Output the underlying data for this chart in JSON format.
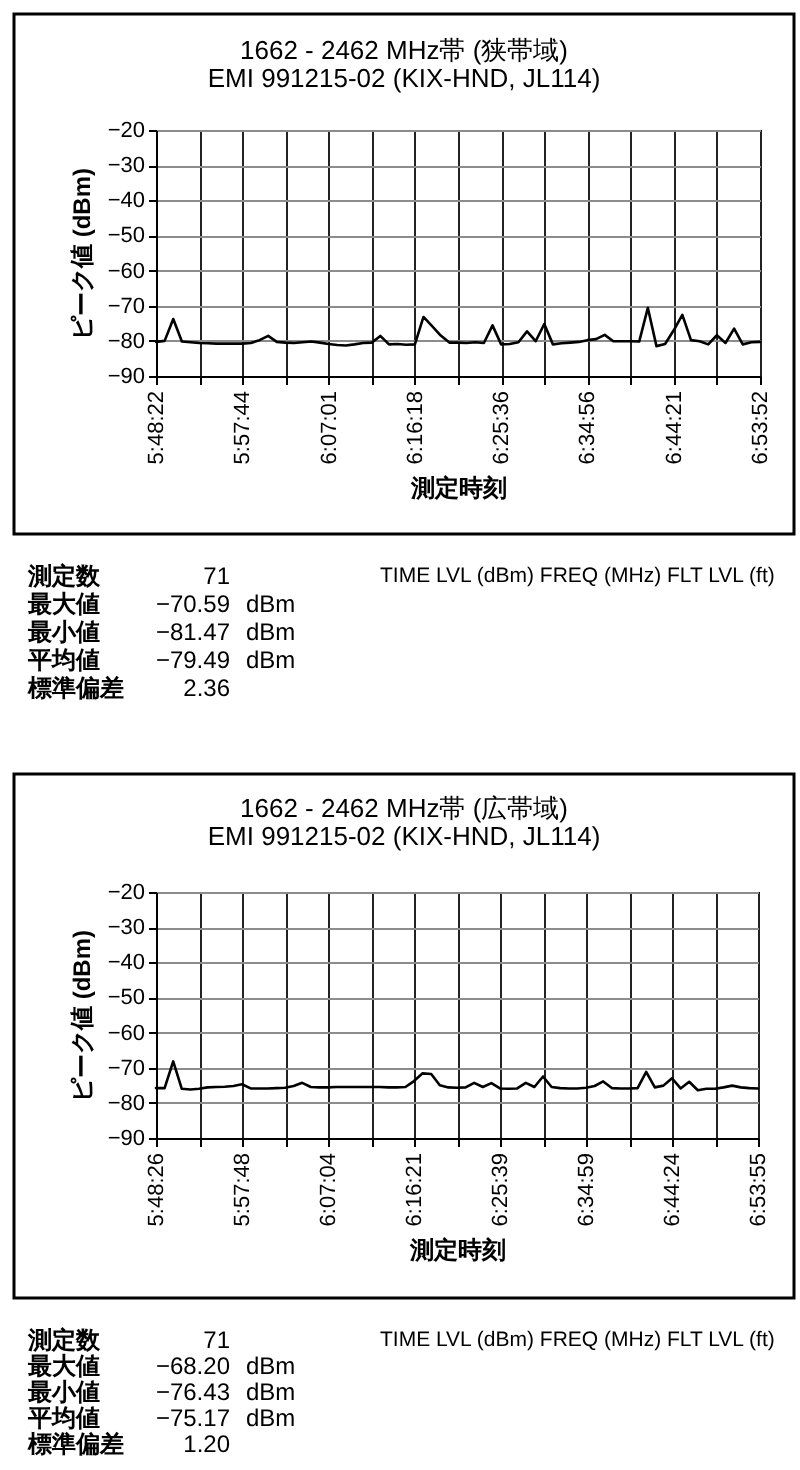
{
  "chart_data": [
    {
      "type": "line",
      "title": "1662 - 2462 MHz帯 (狭帯域)",
      "subtitle": "EMI 991215-02 (KIX-HND, JL114)",
      "xlabel": "測定時刻",
      "ylabel": "ピーク値 (dBm)",
      "categories": [
        "5:48:22",
        null,
        null,
        null,
        null,
        null,
        null,
        null,
        null,
        null,
        "5:57:44",
        null,
        null,
        null,
        null,
        null,
        null,
        null,
        null,
        null,
        "6:07:01",
        null,
        null,
        null,
        null,
        null,
        null,
        null,
        null,
        null,
        "6:16:18",
        null,
        null,
        null,
        null,
        null,
        null,
        null,
        null,
        null,
        "6:25:36",
        null,
        null,
        null,
        null,
        null,
        null,
        null,
        null,
        null,
        "6:34:56",
        null,
        null,
        null,
        null,
        null,
        null,
        null,
        null,
        null,
        "6:44:21",
        null,
        null,
        null,
        null,
        null,
        null,
        null,
        null,
        null,
        "6:53:52"
      ],
      "series": [
        {
          "color": "#000000",
          "values": [
            -80.3,
            -80.0,
            -73.8,
            -80.2,
            -80.4,
            -80.6,
            -80.7,
            -80.8,
            -80.8,
            -80.8,
            -80.8,
            -80.6,
            -79.8,
            -78.6,
            -80.3,
            -80.5,
            -80.6,
            -80.4,
            -80.2,
            -80.5,
            -80.9,
            -81.2,
            -81.3,
            -81.0,
            -80.6,
            -80.5,
            -78.6,
            -81.0,
            -80.9,
            -81.1,
            -81.0,
            -73.2,
            -75.8,
            -78.5,
            -80.5,
            -80.5,
            -80.6,
            -80.4,
            -80.6,
            -75.6,
            -81.0,
            -80.9,
            -80.4,
            -77.3,
            -80.1,
            -75.2,
            -81.0,
            -80.7,
            -80.5,
            -80.3,
            -79.8,
            -79.5,
            -78.3,
            -80.1,
            -80.1,
            -80.1,
            -80.2,
            -70.6,
            -81.5,
            -80.9,
            -77.0,
            -72.6,
            -79.8,
            -80.1,
            -81.0,
            -78.4,
            -80.6,
            -76.5,
            -81.0,
            -80.4,
            -80.3
          ]
        }
      ],
      "ylim": [
        -90,
        -20
      ],
      "yticks": [
        -90,
        -80,
        -70,
        -60,
        -50,
        -40,
        -30,
        -20
      ],
      "grid": true,
      "annotations": [
        "測定数 71",
        "TIME LVL (dBm) FREQ (MHz) FLT LVL (ft)",
        "最大値 −70.59 dBm",
        "最小値 −81.47 dBm",
        "平均値 −79.49 dBm",
        "標準偏差 2.36"
      ]
    },
    {
      "type": "line",
      "title": "1662 - 2462 MHz帯 (広帯域)",
      "subtitle": "EMI 991215-02 (KIX-HND, JL114)",
      "xlabel": "測定時刻",
      "ylabel": "ピーク値 (dBm)",
      "categories": [
        "5:48:26",
        null,
        null,
        null,
        null,
        null,
        null,
        null,
        null,
        null,
        "5:57:48",
        null,
        null,
        null,
        null,
        null,
        null,
        null,
        null,
        null,
        "6:07:04",
        null,
        null,
        null,
        null,
        null,
        null,
        null,
        null,
        null,
        "6:16:21",
        null,
        null,
        null,
        null,
        null,
        null,
        null,
        null,
        null,
        "6:25:39",
        null,
        null,
        null,
        null,
        null,
        null,
        null,
        null,
        null,
        "6:34:59",
        null,
        null,
        null,
        null,
        null,
        null,
        null,
        null,
        null,
        "6:44:24",
        null,
        null,
        null,
        null,
        null,
        null,
        null,
        null,
        null,
        "6:53:55"
      ],
      "series": [
        {
          "color": "#000000",
          "values": [
            -75.8,
            -75.8,
            -68.2,
            -76.0,
            -76.2,
            -76.0,
            -75.6,
            -75.5,
            -75.4,
            -75.2,
            -74.7,
            -75.9,
            -75.9,
            -75.9,
            -75.8,
            -75.7,
            -75.2,
            -74.3,
            -75.5,
            -75.6,
            -75.6,
            -75.5,
            -75.5,
            -75.5,
            -75.5,
            -75.5,
            -75.5,
            -75.6,
            -75.6,
            -75.5,
            -73.8,
            -71.6,
            -71.8,
            -75.0,
            -75.6,
            -75.7,
            -75.6,
            -74.3,
            -75.5,
            -74.4,
            -75.9,
            -76.0,
            -75.9,
            -74.3,
            -75.5,
            -72.5,
            -75.5,
            -75.8,
            -75.9,
            -75.9,
            -75.7,
            -75.2,
            -73.9,
            -75.8,
            -75.9,
            -75.9,
            -75.8,
            -71.2,
            -75.6,
            -75.1,
            -73.0,
            -75.9,
            -74.0,
            -76.4,
            -76.0,
            -76.0,
            -75.6,
            -75.1,
            -75.6,
            -75.8,
            -75.9
          ]
        }
      ],
      "ylim": [
        -90,
        -20
      ],
      "yticks": [
        -90,
        -80,
        -70,
        -60,
        -50,
        -40,
        -30,
        -20
      ],
      "grid": true,
      "annotations": [
        "測定数 71",
        "TIME LVL (dBm) FREQ (MHz) FLT LVL (ft)",
        "最大値 −68.20 dBm",
        "最小値 −76.43 dBm",
        "平均値 −75.17 dBm",
        "標準偏差 1.20"
      ]
    }
  ]
}
